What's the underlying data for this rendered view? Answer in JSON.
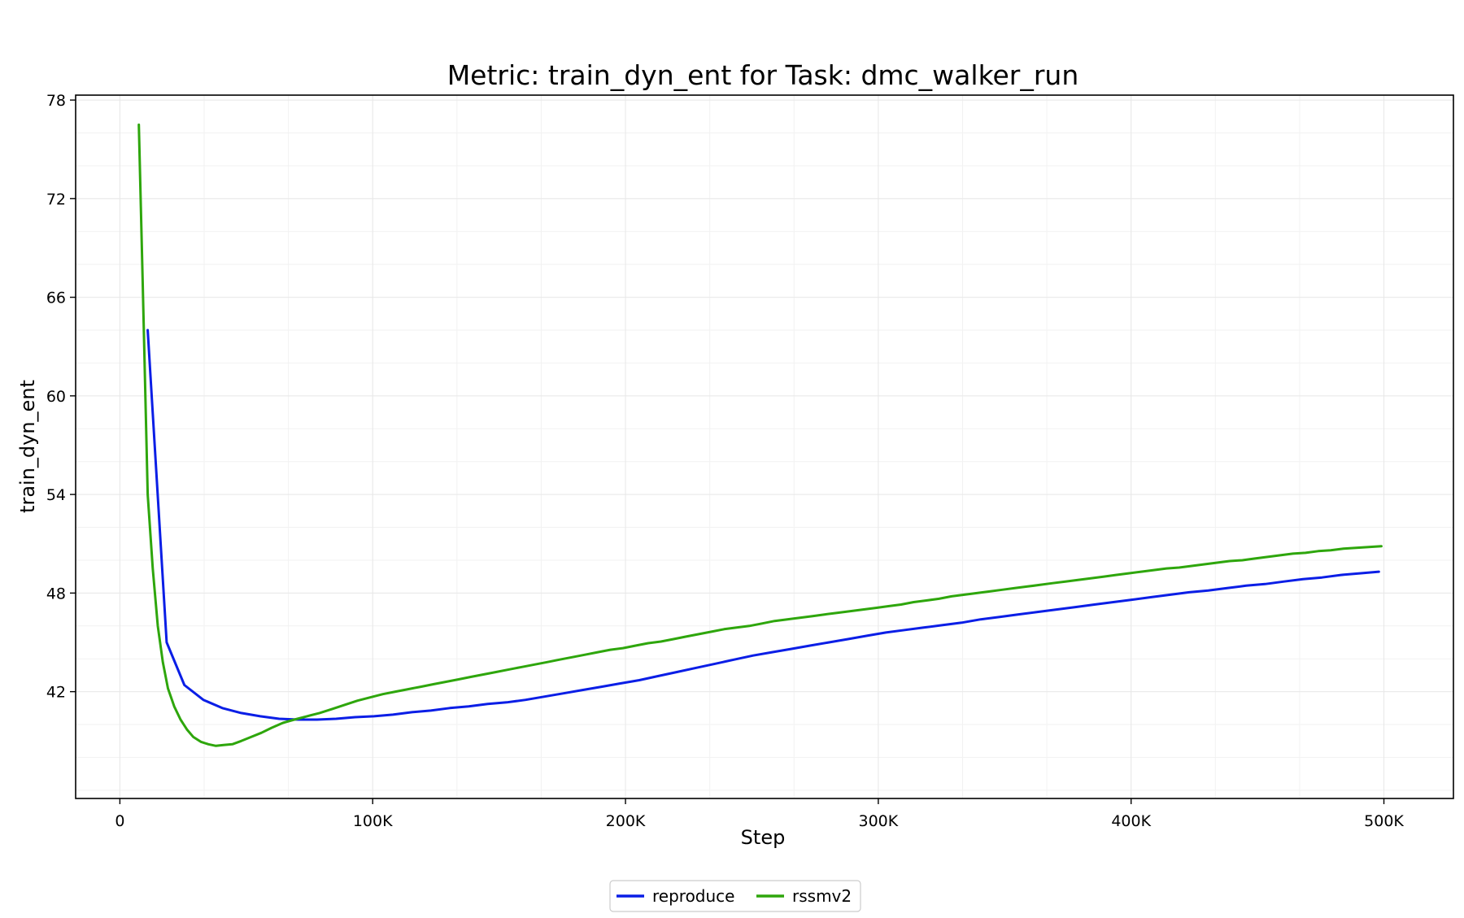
{
  "chart_data": {
    "type": "line",
    "title": "Metric: train_dyn_ent for Task: dmc_walker_run",
    "xlabel": "Step",
    "ylabel": "train_dyn_ent",
    "xlim": [
      -17500,
      527500
    ],
    "ylim": [
      35.5,
      78.3
    ],
    "x_ticks": [
      0,
      100000,
      200000,
      300000,
      400000,
      500000
    ],
    "x_tick_labels": [
      "0",
      "100K",
      "200K",
      "300K",
      "400K",
      "500K"
    ],
    "y_ticks": [
      42,
      48,
      54,
      60,
      66,
      72,
      78
    ],
    "y_tick_labels": [
      "42",
      "48",
      "54",
      "60",
      "66",
      "72",
      "78"
    ],
    "grid": "on",
    "legend_position": "bottom-center",
    "series": [
      {
        "name": "reproduce",
        "color": "#0a1ee6",
        "x": [
          11000,
          18500,
          25500,
          33000,
          40500,
          48000,
          55500,
          63000,
          70500,
          78000,
          85500,
          93000,
          100500,
          108000,
          115500,
          123000,
          130500,
          138000,
          145500,
          153000,
          160500,
          168000,
          175500,
          183000,
          190500,
          198000,
          205500,
          213000,
          220500,
          228000,
          235500,
          243000,
          250500,
          258000,
          265500,
          273000,
          280500,
          288000,
          295500,
          303000,
          310500,
          318000,
          325500,
          333000,
          340500,
          348000,
          355500,
          363000,
          370500,
          378000,
          385500,
          393000,
          400500,
          408000,
          415500,
          423000,
          430500,
          438000,
          445500,
          453000,
          460500,
          468000,
          475500,
          483000,
          490500,
          498000
        ],
        "y": [
          64.0,
          45.0,
          42.4,
          41.5,
          41.0,
          40.7,
          40.5,
          40.35,
          40.3,
          40.3,
          40.35,
          40.45,
          40.5,
          40.6,
          40.75,
          40.85,
          41.0,
          41.1,
          41.25,
          41.35,
          41.5,
          41.7,
          41.9,
          42.1,
          42.3,
          42.5,
          42.7,
          42.95,
          43.2,
          43.45,
          43.7,
          43.95,
          44.2,
          44.4,
          44.6,
          44.8,
          45.0,
          45.2,
          45.4,
          45.6,
          45.75,
          45.9,
          46.05,
          46.2,
          46.4,
          46.55,
          46.7,
          46.85,
          47.0,
          47.15,
          47.3,
          47.45,
          47.6,
          47.75,
          47.9,
          48.05,
          48.15,
          48.3,
          48.45,
          48.55,
          48.7,
          48.85,
          48.95,
          49.1,
          49.2,
          49.3
        ],
        "note_x": "step"
      },
      {
        "name": "rssmv2",
        "color": "#2ea60c",
        "x": [
          7500,
          9000,
          11000,
          13000,
          15000,
          17000,
          19000,
          21500,
          24000,
          26500,
          29000,
          32000,
          35000,
          38000,
          41000,
          44500,
          48000,
          52000,
          56000,
          60000,
          64500,
          69000,
          74000,
          79000,
          84000,
          89000,
          94000,
          99000,
          104000,
          109000,
          114000,
          119000,
          124000,
          129000,
          134000,
          139000,
          144000,
          149000,
          154000,
          159000,
          164000,
          169000,
          174000,
          179000,
          184000,
          189000,
          194000,
          199000,
          204000,
          209000,
          214000,
          219000,
          224000,
          229000,
          234000,
          239000,
          244000,
          249000,
          254000,
          259000,
          264000,
          269000,
          274000,
          279000,
          284000,
          289000,
          294000,
          299000,
          304000,
          309000,
          314000,
          319000,
          324000,
          329000,
          334000,
          339000,
          344000,
          349000,
          354000,
          359000,
          364000,
          369000,
          374000,
          379000,
          384000,
          389000,
          394000,
          399000,
          404000,
          409000,
          414000,
          419000,
          424000,
          429000,
          434000,
          439000,
          444000,
          449000,
          454000,
          459000,
          464000,
          469000,
          474000,
          479000,
          484000,
          489000,
          494000,
          499000
        ],
        "y": [
          76.5,
          67.0,
          54.0,
          49.5,
          46.0,
          43.8,
          42.2,
          41.1,
          40.3,
          39.7,
          39.25,
          38.95,
          38.8,
          38.7,
          38.75,
          38.8,
          39.0,
          39.25,
          39.5,
          39.8,
          40.1,
          40.3,
          40.5,
          40.7,
          40.95,
          41.2,
          41.45,
          41.65,
          41.85,
          42.0,
          42.15,
          42.3,
          42.45,
          42.6,
          42.75,
          42.9,
          43.05,
          43.2,
          43.35,
          43.5,
          43.65,
          43.8,
          43.95,
          44.1,
          44.25,
          44.4,
          44.55,
          44.65,
          44.8,
          44.95,
          45.05,
          45.2,
          45.35,
          45.5,
          45.65,
          45.8,
          45.9,
          46.0,
          46.15,
          46.3,
          46.4,
          46.5,
          46.6,
          46.7,
          46.8,
          46.9,
          47.0,
          47.1,
          47.2,
          47.3,
          47.45,
          47.55,
          47.65,
          47.8,
          47.9,
          48.0,
          48.1,
          48.2,
          48.3,
          48.4,
          48.5,
          48.6,
          48.7,
          48.8,
          48.9,
          49.0,
          49.1,
          49.2,
          49.3,
          49.4,
          49.5,
          49.55,
          49.65,
          49.75,
          49.85,
          49.95,
          50.0,
          50.1,
          50.2,
          50.3,
          50.4,
          50.45,
          50.55,
          50.6,
          50.7,
          50.75,
          50.8,
          50.85
        ]
      }
    ]
  }
}
